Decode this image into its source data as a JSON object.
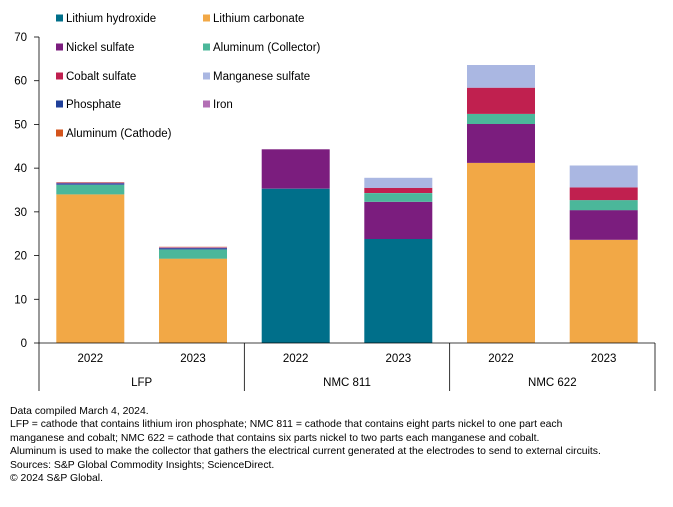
{
  "chart_data": {
    "type": "bar",
    "stacked": true,
    "ylim": [
      0,
      70
    ],
    "yticks": [
      0,
      10,
      20,
      30,
      40,
      50,
      60,
      70
    ],
    "groups": [
      {
        "label": "LFP",
        "categories": [
          "2022",
          "2023"
        ]
      },
      {
        "label": "NMC 811",
        "categories": [
          "2022",
          "2023"
        ]
      },
      {
        "label": "NMC 622",
        "categories": [
          "2022",
          "2023"
        ]
      }
    ],
    "series": [
      {
        "name": "Lithium hydroxide",
        "color": "#006f8a",
        "values": [
          0,
          0,
          35.3,
          23.8,
          0,
          0
        ]
      },
      {
        "name": "Lithium carbonate",
        "color": "#f2a846",
        "values": [
          34.0,
          19.3,
          0,
          0,
          41.2,
          23.6
        ]
      },
      {
        "name": "Nickel sulfate",
        "color": "#7b1d7e",
        "values": [
          0,
          0,
          9.0,
          8.5,
          8.9,
          6.8
        ]
      },
      {
        "name": "Aluminum (Collector)",
        "color": "#4bb79a",
        "values": [
          2.2,
          2.1,
          0,
          2.0,
          2.3,
          2.3
        ]
      },
      {
        "name": "Cobalt sulfate",
        "color": "#c0204f",
        "values": [
          0,
          0,
          0,
          1.2,
          6.0,
          2.9
        ]
      },
      {
        "name": "Manganese sulfate",
        "color": "#aab7e2",
        "values": [
          0,
          0,
          0,
          2.3,
          5.2,
          5.0
        ]
      },
      {
        "name": "Phosphate",
        "color": "#1f3f99",
        "values": [
          0.3,
          0.3,
          0,
          0,
          0,
          0
        ]
      },
      {
        "name": "Iron",
        "color": "#b36fb5",
        "values": [
          0.2,
          0.2,
          0,
          0,
          0,
          0
        ]
      },
      {
        "name": "Aluminum (Cathode)",
        "color": "#d4541c",
        "values": [
          0.1,
          0.1,
          0,
          0,
          0,
          0
        ]
      }
    ],
    "legend_position": "top-left",
    "grid": false
  },
  "notes": [
    "Data compiled March 4, 2024.",
    "LFP = cathode that contains lithium iron phosphate; NMC 811 = cathode that contains eight parts nickel to one part each",
    "manganese and cobalt; NMC 622 = cathode that contains six parts nickel to two parts each manganese and cobalt.",
    "Aluminum is used to make the collector that gathers the electrical current generated at the electrodes to send to external circuits.",
    "Sources: S&P Global Commodity Insights; ScienceDirect.",
    "© 2024 S&P Global."
  ]
}
